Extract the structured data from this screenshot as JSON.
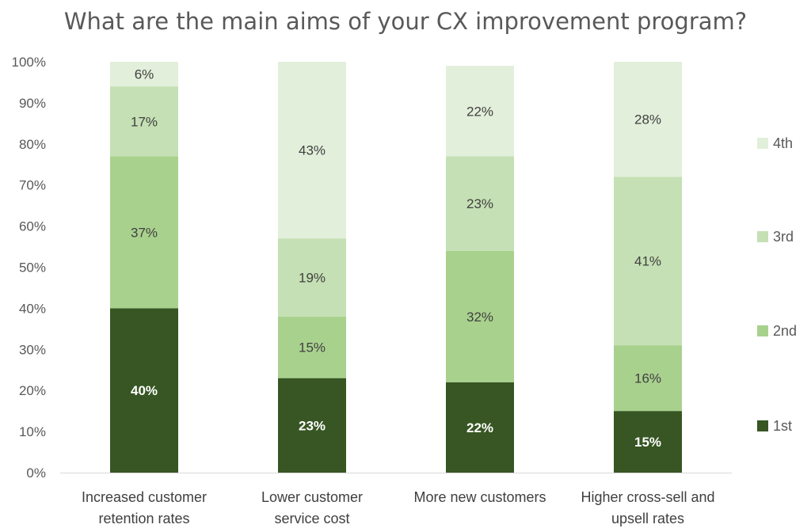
{
  "chart_data": {
    "type": "bar",
    "stacked": true,
    "title": "What are the main aims of your CX improvement program?",
    "categories": [
      [
        "Increased customer",
        "retention rates"
      ],
      [
        "Lower customer",
        "service cost"
      ],
      [
        "More new customers"
      ],
      [
        "Higher cross-sell and",
        "upsell rates"
      ]
    ],
    "series": [
      {
        "name": "1st",
        "values": [
          40,
          23,
          22,
          15
        ],
        "labels": [
          "40%",
          "23%",
          "22%",
          "15%"
        ],
        "color": "#375623",
        "label_color": "#ffffff"
      },
      {
        "name": "2nd",
        "values": [
          37,
          15,
          32,
          16
        ],
        "labels": [
          "37%",
          "15%",
          "32%",
          "16%"
        ],
        "color": "#a9d18e",
        "label_color": "#404040"
      },
      {
        "name": "3rd",
        "values": [
          17,
          19,
          23,
          41
        ],
        "labels": [
          "17%",
          "19%",
          "23%",
          "41%"
        ],
        "color": "#c5e0b4",
        "label_color": "#404040"
      },
      {
        "name": "4th",
        "values": [
          6,
          43,
          22,
          28
        ],
        "labels": [
          "6%",
          "43%",
          "22%",
          "28%"
        ],
        "color": "#e2efda",
        "label_color": "#404040"
      }
    ],
    "y_ticks": [
      "0%",
      "10%",
      "20%",
      "30%",
      "40%",
      "50%",
      "60%",
      "70%",
      "80%",
      "90%",
      "100%"
    ],
    "ylim": [
      0,
      100
    ],
    "legend_position": "right",
    "grid": false
  }
}
